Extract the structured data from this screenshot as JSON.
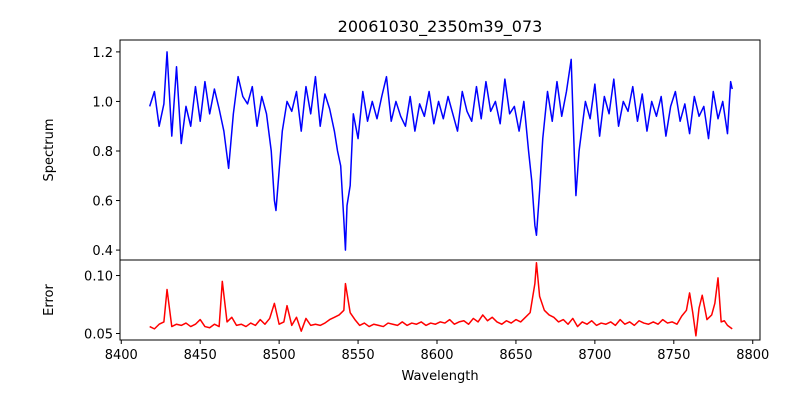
{
  "chart_data": [
    {
      "type": "line",
      "title": "20061030_2350m39_073",
      "xlabel": "",
      "ylabel": "Spectrum",
      "xlim": [
        8399.2,
        8804.6
      ],
      "ylim": [
        0.36,
        1.248
      ],
      "yticks": [
        0.4,
        0.6,
        0.8,
        1.0,
        1.2
      ],
      "ytick_labels": [
        "0.4",
        "0.6",
        "0.8",
        "1.0",
        "1.2"
      ],
      "grid": false,
      "series": [
        {
          "name": "Spectrum",
          "color": "#0000ff",
          "points": [
            [
              8418,
              0.98
            ],
            [
              8421,
              1.04
            ],
            [
              8424,
              0.9
            ],
            [
              8427,
              0.99
            ],
            [
              8429,
              1.2
            ],
            [
              8432,
              0.86
            ],
            [
              8435,
              1.14
            ],
            [
              8438,
              0.83
            ],
            [
              8441,
              0.98
            ],
            [
              8444,
              0.9
            ],
            [
              8447,
              1.06
            ],
            [
              8450,
              0.92
            ],
            [
              8453,
              1.08
            ],
            [
              8456,
              0.95
            ],
            [
              8459,
              1.05
            ],
            [
              8462,
              0.97
            ],
            [
              8465,
              0.88
            ],
            [
              8468,
              0.73
            ],
            [
              8471,
              0.95
            ],
            [
              8474,
              1.1
            ],
            [
              8477,
              1.02
            ],
            [
              8480,
              0.99
            ],
            [
              8483,
              1.06
            ],
            [
              8486,
              0.9
            ],
            [
              8489,
              1.02
            ],
            [
              8492,
              0.95
            ],
            [
              8495,
              0.8
            ],
            [
              8497,
              0.6
            ],
            [
              8498,
              0.56
            ],
            [
              8500,
              0.72
            ],
            [
              8502,
              0.88
            ],
            [
              8505,
              1.0
            ],
            [
              8508,
              0.96
            ],
            [
              8511,
              1.04
            ],
            [
              8514,
              0.88
            ],
            [
              8517,
              1.06
            ],
            [
              8520,
              0.95
            ],
            [
              8523,
              1.1
            ],
            [
              8526,
              0.9
            ],
            [
              8529,
              1.03
            ],
            [
              8532,
              0.97
            ],
            [
              8535,
              0.88
            ],
            [
              8537,
              0.8
            ],
            [
              8539,
              0.74
            ],
            [
              8541,
              0.52
            ],
            [
              8542,
              0.4
            ],
            [
              8543,
              0.58
            ],
            [
              8545,
              0.66
            ],
            [
              8547,
              0.95
            ],
            [
              8550,
              0.85
            ],
            [
              8553,
              1.04
            ],
            [
              8556,
              0.92
            ],
            [
              8559,
              1.0
            ],
            [
              8562,
              0.93
            ],
            [
              8565,
              1.02
            ],
            [
              8568,
              1.1
            ],
            [
              8571,
              0.92
            ],
            [
              8574,
              1.0
            ],
            [
              8577,
              0.94
            ],
            [
              8580,
              0.9
            ],
            [
              8583,
              1.02
            ],
            [
              8586,
              0.88
            ],
            [
              8589,
              0.99
            ],
            [
              8592,
              0.94
            ],
            [
              8595,
              1.04
            ],
            [
              8598,
              0.91
            ],
            [
              8601,
              1.0
            ],
            [
              8604,
              0.93
            ],
            [
              8607,
              1.02
            ],
            [
              8610,
              0.95
            ],
            [
              8613,
              0.88
            ],
            [
              8616,
              1.04
            ],
            [
              8619,
              0.96
            ],
            [
              8622,
              0.92
            ],
            [
              8625,
              1.06
            ],
            [
              8628,
              0.93
            ],
            [
              8631,
              1.08
            ],
            [
              8634,
              0.96
            ],
            [
              8637,
              1.0
            ],
            [
              8640,
              0.91
            ],
            [
              8643,
              1.09
            ],
            [
              8646,
              0.95
            ],
            [
              8649,
              0.98
            ],
            [
              8652,
              0.88
            ],
            [
              8655,
              1.0
            ],
            [
              8658,
              0.8
            ],
            [
              8660,
              0.68
            ],
            [
              8662,
              0.5
            ],
            [
              8663,
              0.46
            ],
            [
              8665,
              0.64
            ],
            [
              8667,
              0.85
            ],
            [
              8670,
              1.04
            ],
            [
              8673,
              0.92
            ],
            [
              8676,
              1.08
            ],
            [
              8679,
              0.94
            ],
            [
              8682,
              1.04
            ],
            [
              8685,
              1.17
            ],
            [
              8687,
              0.78
            ],
            [
              8688,
              0.62
            ],
            [
              8690,
              0.8
            ],
            [
              8692,
              0.9
            ],
            [
              8694,
              1.0
            ],
            [
              8697,
              0.93
            ],
            [
              8700,
              1.07
            ],
            [
              8703,
              0.86
            ],
            [
              8706,
              1.02
            ],
            [
              8709,
              0.95
            ],
            [
              8712,
              1.09
            ],
            [
              8715,
              0.9
            ],
            [
              8718,
              1.0
            ],
            [
              8721,
              0.96
            ],
            [
              8724,
              1.06
            ],
            [
              8727,
              0.92
            ],
            [
              8730,
              1.03
            ],
            [
              8733,
              0.88
            ],
            [
              8736,
              1.0
            ],
            [
              8739,
              0.94
            ],
            [
              8742,
              1.02
            ],
            [
              8745,
              0.86
            ],
            [
              8748,
              0.98
            ],
            [
              8751,
              1.04
            ],
            [
              8754,
              0.92
            ],
            [
              8757,
              0.99
            ],
            [
              8760,
              0.87
            ],
            [
              8763,
              1.02
            ],
            [
              8766,
              0.94
            ],
            [
              8769,
              0.98
            ],
            [
              8772,
              0.85
            ],
            [
              8775,
              1.04
            ],
            [
              8778,
              0.93
            ],
            [
              8781,
              1.0
            ],
            [
              8784,
              0.87
            ],
            [
              8786,
              1.08
            ],
            [
              8787,
              1.05
            ]
          ]
        }
      ]
    },
    {
      "type": "line",
      "title": "",
      "xlabel": "Wavelength",
      "ylabel": "Error",
      "xlim": [
        8399.2,
        8804.6
      ],
      "ylim": [
        0.0444,
        0.1134
      ],
      "xticks": [
        8400,
        8450,
        8500,
        8550,
        8600,
        8650,
        8700,
        8750,
        8800
      ],
      "xtick_labels": [
        "8400",
        "8450",
        "8500",
        "8550",
        "8600",
        "8650",
        "8700",
        "8750",
        "8800"
      ],
      "yticks": [
        0.05,
        0.1
      ],
      "ytick_labels": [
        "0.05",
        "0.10"
      ],
      "grid": false,
      "series": [
        {
          "name": "Error",
          "color": "#ff0000",
          "points": [
            [
              8418,
              0.056
            ],
            [
              8421,
              0.054
            ],
            [
              8424,
              0.058
            ],
            [
              8427,
              0.06
            ],
            [
              8429,
              0.088
            ],
            [
              8432,
              0.056
            ],
            [
              8435,
              0.058
            ],
            [
              8438,
              0.057
            ],
            [
              8441,
              0.059
            ],
            [
              8444,
              0.056
            ],
            [
              8447,
              0.058
            ],
            [
              8450,
              0.062
            ],
            [
              8453,
              0.056
            ],
            [
              8456,
              0.055
            ],
            [
              8459,
              0.058
            ],
            [
              8462,
              0.056
            ],
            [
              8464,
              0.095
            ],
            [
              8467,
              0.06
            ],
            [
              8470,
              0.064
            ],
            [
              8473,
              0.057
            ],
            [
              8476,
              0.058
            ],
            [
              8479,
              0.056
            ],
            [
              8482,
              0.059
            ],
            [
              8485,
              0.057
            ],
            [
              8488,
              0.062
            ],
            [
              8491,
              0.058
            ],
            [
              8494,
              0.063
            ],
            [
              8497,
              0.076
            ],
            [
              8500,
              0.058
            ],
            [
              8503,
              0.06
            ],
            [
              8505,
              0.074
            ],
            [
              8508,
              0.057
            ],
            [
              8511,
              0.064
            ],
            [
              8514,
              0.052
            ],
            [
              8517,
              0.063
            ],
            [
              8520,
              0.057
            ],
            [
              8523,
              0.058
            ],
            [
              8526,
              0.057
            ],
            [
              8529,
              0.059
            ],
            [
              8532,
              0.062
            ],
            [
              8535,
              0.064
            ],
            [
              8538,
              0.066
            ],
            [
              8541,
              0.07
            ],
            [
              8542,
              0.093
            ],
            [
              8545,
              0.068
            ],
            [
              8548,
              0.062
            ],
            [
              8551,
              0.057
            ],
            [
              8554,
              0.059
            ],
            [
              8557,
              0.056
            ],
            [
              8560,
              0.058
            ],
            [
              8563,
              0.057
            ],
            [
              8566,
              0.056
            ],
            [
              8569,
              0.059
            ],
            [
              8572,
              0.058
            ],
            [
              8575,
              0.057
            ],
            [
              8578,
              0.06
            ],
            [
              8581,
              0.057
            ],
            [
              8584,
              0.059
            ],
            [
              8587,
              0.058
            ],
            [
              8590,
              0.06
            ],
            [
              8593,
              0.057
            ],
            [
              8596,
              0.059
            ],
            [
              8599,
              0.058
            ],
            [
              8602,
              0.06
            ],
            [
              8605,
              0.059
            ],
            [
              8608,
              0.062
            ],
            [
              8611,
              0.058
            ],
            [
              8614,
              0.06
            ],
            [
              8617,
              0.061
            ],
            [
              8620,
              0.058
            ],
            [
              8623,
              0.063
            ],
            [
              8626,
              0.06
            ],
            [
              8629,
              0.066
            ],
            [
              8632,
              0.061
            ],
            [
              8635,
              0.064
            ],
            [
              8638,
              0.06
            ],
            [
              8641,
              0.058
            ],
            [
              8644,
              0.061
            ],
            [
              8647,
              0.059
            ],
            [
              8650,
              0.062
            ],
            [
              8653,
              0.06
            ],
            [
              8656,
              0.064
            ],
            [
              8659,
              0.068
            ],
            [
              8662,
              0.093
            ],
            [
              8663,
              0.111
            ],
            [
              8665,
              0.082
            ],
            [
              8668,
              0.07
            ],
            [
              8671,
              0.066
            ],
            [
              8674,
              0.064
            ],
            [
              8677,
              0.06
            ],
            [
              8680,
              0.062
            ],
            [
              8683,
              0.058
            ],
            [
              8686,
              0.063
            ],
            [
              8689,
              0.056
            ],
            [
              8692,
              0.06
            ],
            [
              8695,
              0.058
            ],
            [
              8698,
              0.061
            ],
            [
              8701,
              0.057
            ],
            [
              8704,
              0.059
            ],
            [
              8707,
              0.058
            ],
            [
              8710,
              0.06
            ],
            [
              8713,
              0.057
            ],
            [
              8716,
              0.062
            ],
            [
              8719,
              0.058
            ],
            [
              8722,
              0.06
            ],
            [
              8725,
              0.057
            ],
            [
              8728,
              0.061
            ],
            [
              8731,
              0.059
            ],
            [
              8734,
              0.058
            ],
            [
              8737,
              0.06
            ],
            [
              8740,
              0.058
            ],
            [
              8743,
              0.062
            ],
            [
              8746,
              0.059
            ],
            [
              8749,
              0.06
            ],
            [
              8752,
              0.058
            ],
            [
              8755,
              0.065
            ],
            [
              8758,
              0.07
            ],
            [
              8760,
              0.085
            ],
            [
              8762,
              0.068
            ],
            [
              8764,
              0.048
            ],
            [
              8766,
              0.072
            ],
            [
              8768,
              0.083
            ],
            [
              8771,
              0.062
            ],
            [
              8774,
              0.066
            ],
            [
              8776,
              0.076
            ],
            [
              8778,
              0.098
            ],
            [
              8780,
              0.06
            ],
            [
              8782,
              0.061
            ],
            [
              8784,
              0.057
            ],
            [
              8787,
              0.054
            ]
          ]
        }
      ]
    }
  ]
}
